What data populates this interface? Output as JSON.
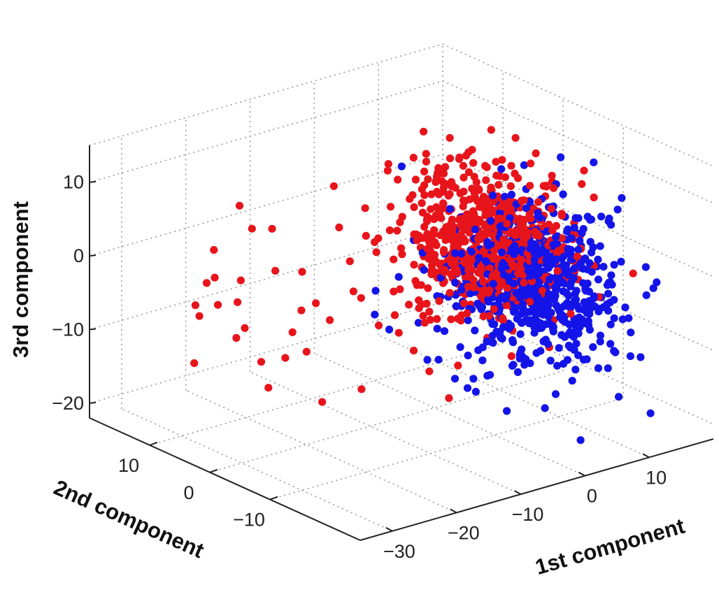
{
  "chart_data": {
    "type": "scatter",
    "projection": "3d",
    "grid": true,
    "axes": {
      "x": {
        "label": "1st component",
        "range": [
          -35,
          20
        ],
        "ticks": [
          -30,
          -20,
          -10,
          0,
          10
        ],
        "tick_labels": [
          "−30",
          "−20",
          "−10",
          "0",
          "10"
        ]
      },
      "y": {
        "label": "2nd component",
        "range": [
          -25,
          20
        ],
        "ticks": [
          -10,
          0,
          10
        ],
        "tick_labels": [
          "−10",
          "0",
          "10"
        ]
      },
      "z": {
        "label": "3rd component",
        "range": [
          -22,
          15
        ],
        "ticks": [
          -20,
          -10,
          0,
          10
        ],
        "tick_labels": [
          "−20",
          "−10",
          "0",
          "10"
        ]
      }
    },
    "series": [
      {
        "color": "#e8141b",
        "cluster": {
          "center": [
            3,
            -5,
            2
          ],
          "spread": [
            4.5,
            5,
            5
          ],
          "count": 650,
          "z_bias": 2.5
        },
        "points": [
          [
            -30,
            4,
            -2
          ],
          [
            -31,
            6,
            -4
          ],
          [
            -29,
            2,
            -6
          ],
          [
            -28,
            8,
            -1
          ],
          [
            -27,
            0,
            -9
          ],
          [
            -26,
            5,
            -3
          ],
          [
            -25,
            10,
            2
          ],
          [
            -24,
            -2,
            -5
          ],
          [
            -23,
            7,
            -8
          ],
          [
            -22,
            3,
            1
          ],
          [
            -21,
            -5,
            -3
          ],
          [
            -20,
            9,
            4
          ],
          [
            -19,
            1,
            -10
          ],
          [
            -18,
            -7,
            0
          ],
          [
            -17,
            4,
            -6
          ],
          [
            -16,
            -3,
            3
          ],
          [
            -15,
            6,
            -2
          ],
          [
            -14,
            -9,
            -5
          ],
          [
            -13,
            2,
            5
          ],
          [
            -12,
            -6,
            -1
          ],
          [
            -11,
            8,
            -8
          ],
          [
            -10,
            -1,
            2
          ],
          [
            -9,
            -10,
            -4
          ],
          [
            -8,
            3,
            6
          ],
          [
            -7,
            -4,
            -11
          ],
          [
            -6,
            5,
            1
          ],
          [
            -5,
            -8,
            3
          ],
          [
            -4,
            0,
            -7
          ],
          [
            -3,
            -12,
            0
          ],
          [
            -2,
            4,
            8
          ],
          [
            -27,
            -4,
            -7
          ],
          [
            -25,
            -8,
            -12
          ],
          [
            -23,
            12,
            -3
          ],
          [
            -21,
            10,
            7
          ],
          [
            -19,
            -11,
            -2
          ],
          [
            -17,
            -6,
            -13
          ],
          [
            -15,
            11,
            2
          ],
          [
            -13,
            -13,
            -9
          ],
          [
            -11,
            5,
            9
          ],
          [
            -9,
            -12,
            -14
          ],
          [
            -29,
            9,
            -12
          ],
          [
            -26,
            12,
            -6
          ],
          [
            -24,
            2,
            -14
          ],
          [
            -22,
            -10,
            3
          ],
          [
            -18,
            13,
            -5
          ]
        ]
      },
      {
        "color": "#1414e8",
        "cluster": {
          "center": [
            5,
            -11,
            -2
          ],
          "spread": [
            4,
            5,
            5
          ],
          "count": 650,
          "z_bias": -2.5
        },
        "points": [
          [
            -12,
            -3,
            -2
          ],
          [
            -10,
            -8,
            -5
          ],
          [
            -8,
            -1,
            -9
          ],
          [
            -6,
            -10,
            -3
          ],
          [
            -5,
            -6,
            -12
          ],
          [
            -4,
            -14,
            -7
          ],
          [
            -3,
            -2,
            -14
          ],
          [
            -2,
            -9,
            -16
          ],
          [
            -1,
            -16,
            -10
          ],
          [
            0,
            -12,
            -18
          ],
          [
            2,
            -18,
            -14
          ],
          [
            4,
            -20,
            -20
          ],
          [
            6,
            -15,
            -12
          ],
          [
            8,
            -19,
            -8
          ],
          [
            10,
            -14,
            -6
          ],
          [
            -14,
            -5,
            -4
          ],
          [
            -9,
            -13,
            -11
          ],
          [
            -7,
            -4,
            4
          ],
          [
            12,
            -17,
            -11
          ],
          [
            9,
            -21,
            -15
          ]
        ]
      }
    ]
  }
}
